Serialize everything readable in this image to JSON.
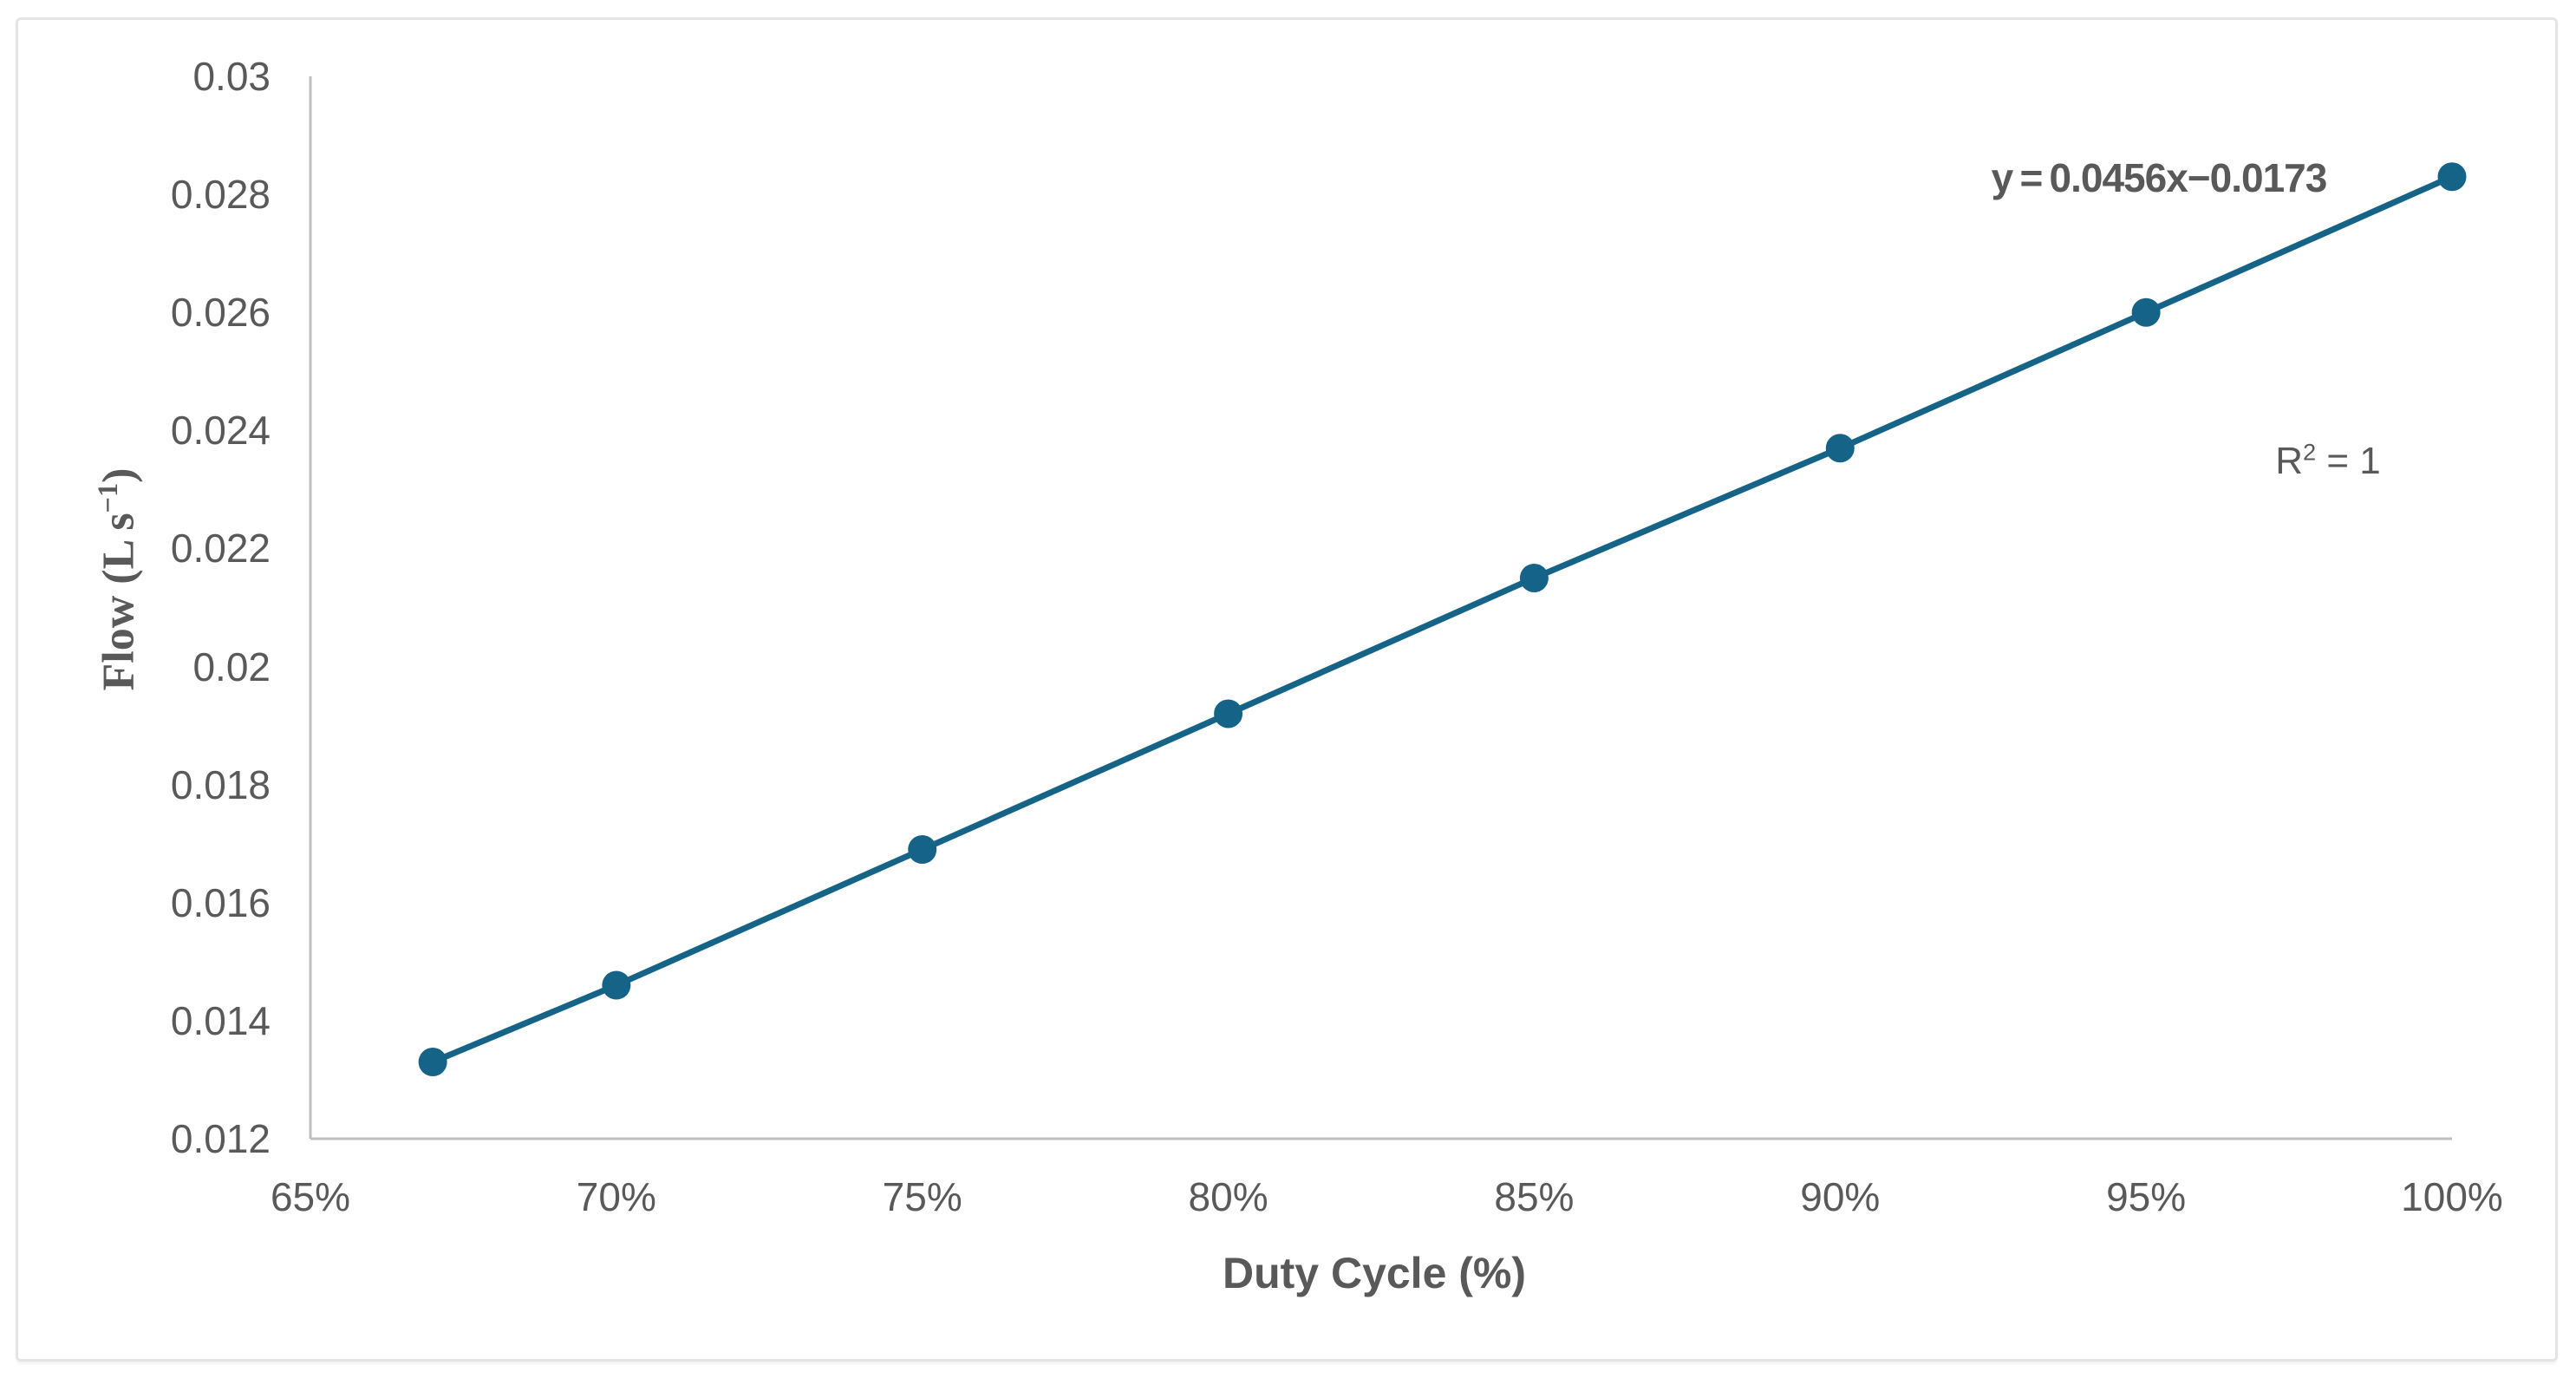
{
  "colors": {
    "series": "#156487",
    "axis_line": "#bfbfbf",
    "text": "#595959",
    "frame_border": "#e4e4e4",
    "background": "#ffffff"
  },
  "chart_data": {
    "type": "line",
    "title": "",
    "xlabel": "Duty Cycle (%)",
    "ylabel": "Flow (L s⁻¹)",
    "ylabel_parts": {
      "base": "Flow (L s",
      "sup": "−1",
      "close": ")"
    },
    "x": [
      0.67,
      0.7,
      0.75,
      0.8,
      0.85,
      0.9,
      0.95,
      1.0
    ],
    "series": [
      {
        "name": "Flow",
        "values": [
          0.0133,
          0.0146,
          0.0169,
          0.0192,
          0.0215,
          0.0237,
          0.026,
          0.0283
        ]
      }
    ],
    "xlim": [
      0.65,
      1.0
    ],
    "ylim": [
      0.012,
      0.03
    ],
    "x_tick_values": [
      0.65,
      0.7,
      0.75,
      0.8,
      0.85,
      0.9,
      0.95,
      1.0
    ],
    "x_tick_labels": [
      "65%",
      "70%",
      "75%",
      "80%",
      "85%",
      "90%",
      "95%",
      "100%"
    ],
    "y_tick_values": [
      0.03,
      0.028,
      0.026,
      0.024,
      0.022,
      0.02,
      0.018,
      0.016,
      0.014,
      0.012
    ],
    "y_tick_labels": [
      "0.03",
      "0.028",
      "0.026",
      "0.024",
      "0.022",
      "0.02",
      "0.018",
      "0.016",
      "0.014",
      "0.012"
    ],
    "grid": false,
    "legend": "none",
    "marker": "circle",
    "trendline": {
      "equation": "y = 0.0456x−0.0173",
      "slope": 0.0456,
      "intercept": -0.0173,
      "r_squared_value": 1,
      "r_squared_label": "R² = 1",
      "r_squared_parts": {
        "base": "R",
        "sup": "2",
        "rest": " = 1"
      }
    }
  }
}
